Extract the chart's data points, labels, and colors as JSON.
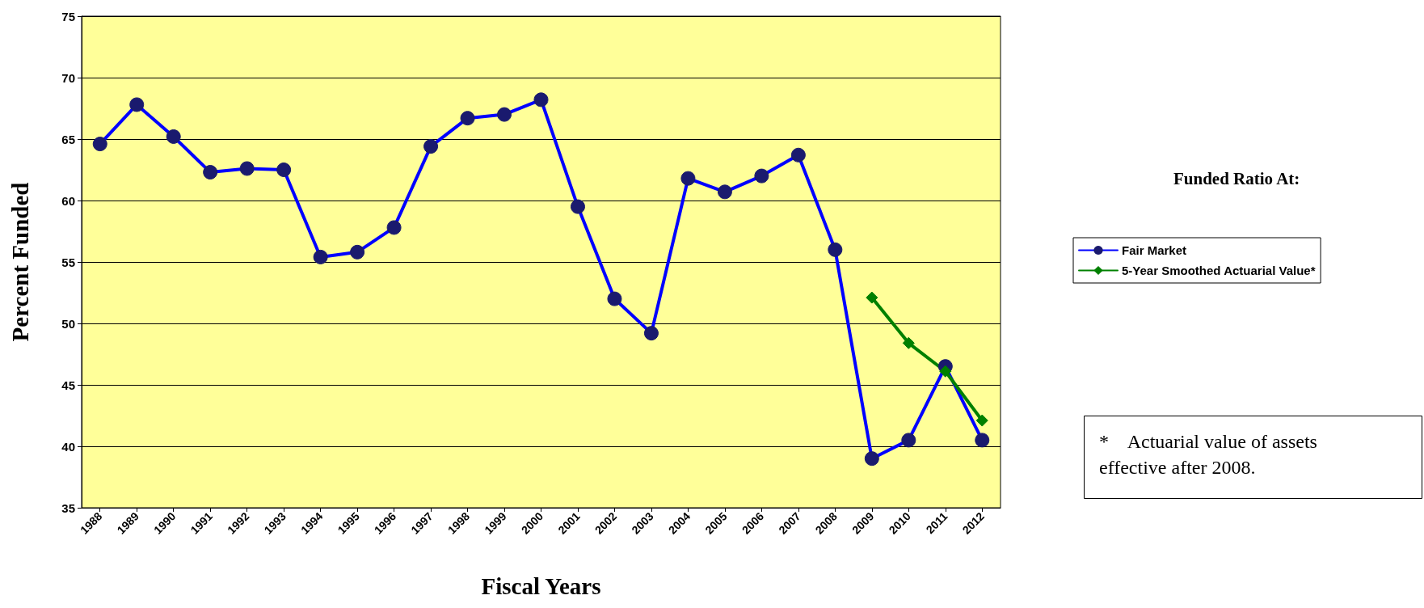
{
  "chart_data": {
    "type": "line",
    "xlabel": "Fiscal Years",
    "ylabel": "Percent Funded",
    "legend_title": "Funded Ratio At:",
    "categories": [
      "1988",
      "1989",
      "1990",
      "1991",
      "1992",
      "1993",
      "1994",
      "1995",
      "1996",
      "1997",
      "1998",
      "1999",
      "2000",
      "2001",
      "2002",
      "2003",
      "2004",
      "2005",
      "2006",
      "2007",
      "2008",
      "2009",
      "2010",
      "2011",
      "2012"
    ],
    "series": [
      {
        "name": "Fair Market",
        "color": "#0000ff",
        "values": [
          64.6,
          67.8,
          65.2,
          62.3,
          62.6,
          62.5,
          55.4,
          55.8,
          57.8,
          64.4,
          66.7,
          67.0,
          68.2,
          59.5,
          52.0,
          49.2,
          61.8,
          60.7,
          62.0,
          63.7,
          56.0,
          39.0,
          40.5,
          46.5,
          40.5
        ]
      },
      {
        "name": "5-Year Smoothed Actuarial Value*",
        "color": "#008000",
        "marker": "diamond",
        "values": [
          null,
          null,
          null,
          null,
          null,
          null,
          null,
          null,
          null,
          null,
          null,
          null,
          null,
          null,
          null,
          null,
          null,
          null,
          null,
          null,
          null,
          52.1,
          48.4,
          46.1,
          42.1
        ]
      }
    ],
    "ylim": [
      35,
      75
    ],
    "yticks": [
      35,
      40,
      45,
      50,
      55,
      60,
      65,
      70,
      75
    ],
    "grid": "y",
    "legend": "right",
    "marker": "circle",
    "line_style": "solid",
    "annotations": [
      "*    Actuarial value of assets effective after 2008."
    ]
  }
}
